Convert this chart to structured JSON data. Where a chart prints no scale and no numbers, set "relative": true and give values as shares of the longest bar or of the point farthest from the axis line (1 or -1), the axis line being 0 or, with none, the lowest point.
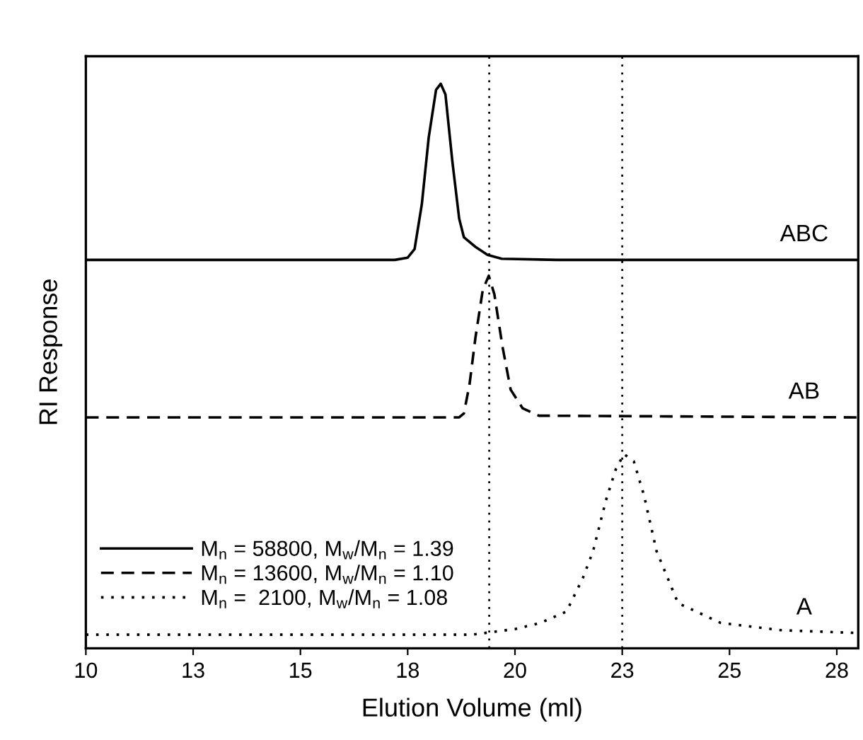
{
  "chart_data": {
    "type": "line",
    "relative": true,
    "xlabel": "Elution Volume (ml)",
    "ylabel": "RI Response",
    "xlim": [
      10,
      28
    ],
    "xticks": [
      10,
      {
        "value": 12.5,
        "label": "13"
      },
      15,
      {
        "value": 17.5,
        "label": "18"
      },
      20,
      {
        "value": 22.5,
        "label": "23"
      },
      25,
      {
        "value": 27.5,
        "label": "28"
      }
    ],
    "legend": "bottom left",
    "grid": false,
    "marker": "none",
    "series": [
      {
        "name": "M$_{n}$ = 58800, M$_{w}$/M$_{n}$ = 1.39",
        "color": "#000000",
        "line_style": "solid",
        "x": [
          10,
          17.2,
          17.5,
          17.66,
          17.83,
          17.99,
          18.16,
          18.27,
          18.38,
          18.54,
          18.7,
          18.81,
          19.08,
          19.36,
          19.69,
          21,
          28
        ],
        "values": [
          0.688,
          0.688,
          0.692,
          0.707,
          0.787,
          0.905,
          0.989,
          1.0,
          0.981,
          0.863,
          0.761,
          0.728,
          0.711,
          0.697,
          0.69,
          0.688,
          0.688
        ]
      },
      {
        "name": "M$_{n}$ = 13600, M$_{w}$/M$_{n}$ = 1.10",
        "color": "#000000",
        "line_style": "dashed",
        "x": [
          10,
          18.7,
          18.81,
          18.94,
          19.08,
          19.25,
          19.39,
          19.52,
          19.71,
          19.9,
          20.18,
          20.56,
          28
        ],
        "values": [
          0.409,
          0.409,
          0.416,
          0.467,
          0.551,
          0.635,
          0.66,
          0.627,
          0.534,
          0.458,
          0.425,
          0.412,
          0.409
        ]
      },
      {
        "name": "M$_{n}$ =  2100, M$_{w}$/M$_{n}$ = 1.08",
        "color": "#000000",
        "line_style": "dotted",
        "x": [
          10,
          19.0,
          20.0,
          20.6,
          21.2,
          21.58,
          21.82,
          22.12,
          22.35,
          22.54,
          22.77,
          23.01,
          23.3,
          23.8,
          24.79,
          26.2,
          28
        ],
        "values": [
          0.024,
          0.024,
          0.034,
          0.045,
          0.065,
          0.124,
          0.172,
          0.262,
          0.317,
          0.344,
          0.331,
          0.27,
          0.172,
          0.08,
          0.045,
          0.032,
          0.027
        ]
      }
    ],
    "ref_lines": [
      {
        "axis": "x",
        "value": 19.4,
        "color": "#000000",
        "line_style": "dotted"
      },
      {
        "axis": "x",
        "value": 22.5,
        "color": "#000000",
        "line_style": "dotted"
      }
    ],
    "annotations": [
      "ABC",
      "AB",
      "A"
    ]
  }
}
